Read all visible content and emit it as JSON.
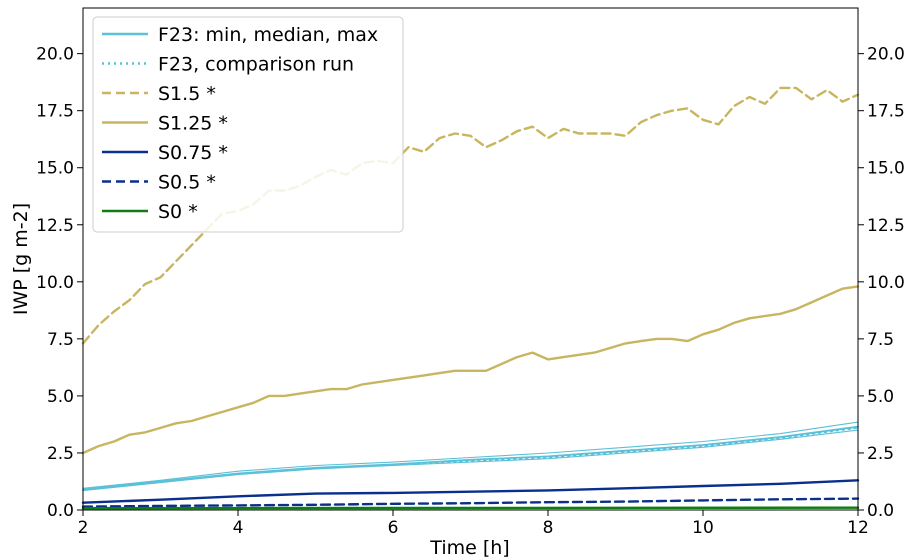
{
  "chart_data": {
    "type": "line",
    "xlabel": "Time [h]",
    "ylabel": "IWP [g m-2]",
    "xlim": [
      2,
      12
    ],
    "ylim": [
      0,
      22
    ],
    "x_ticks": [
      2,
      4,
      6,
      8,
      10,
      12
    ],
    "x_tick_labels": [
      "2",
      "4",
      "6",
      "8",
      "10",
      "12"
    ],
    "y_ticks": [
      0,
      2.5,
      5,
      7.5,
      10,
      12.5,
      15,
      17.5,
      20
    ],
    "y_tick_labels": [
      "0.0",
      "2.5",
      "5.0",
      "7.5",
      "10.0",
      "12.5",
      "15.0",
      "17.5",
      "20.0"
    ],
    "right_y_tick_labels": [
      "0.0",
      "2.5",
      "5.0",
      "7.5",
      "10.0",
      "12.5",
      "15.0",
      "17.5",
      "20.0"
    ],
    "grid": false,
    "legend_position": "top-left",
    "legend": [
      {
        "label": "F23: min, median, max",
        "color": "#5bc0d8",
        "dash": "solid"
      },
      {
        "label": "F23, comparison run",
        "color": "#5bc0d8",
        "dash": "dotted"
      },
      {
        "label": "S1.5 *",
        "color": "#c8b560",
        "dash": "dashed"
      },
      {
        "label": "S1.25 *",
        "color": "#c8b560",
        "dash": "solid"
      },
      {
        "label": "S0.75 *",
        "color": "#0a2f8c",
        "dash": "solid"
      },
      {
        "label": "S0.5 *",
        "color": "#0a2f8c",
        "dash": "dashed"
      },
      {
        "label": "S0 *",
        "color": "#0e7d12",
        "dash": "solid"
      }
    ],
    "series": [
      {
        "name": "S1.5 *",
        "color": "#c8b560",
        "dash": "dashed",
        "width": 2.4,
        "x": [
          2,
          2.2,
          2.4,
          2.6,
          2.8,
          3,
          3.2,
          3.4,
          3.6,
          3.8,
          4,
          4.2,
          4.4,
          4.6,
          4.8,
          5,
          5.2,
          5.4,
          5.6,
          5.8,
          6,
          6.2,
          6.4,
          6.6,
          6.8,
          7,
          7.2,
          7.4,
          7.6,
          7.8,
          8,
          8.2,
          8.4,
          8.6,
          8.8,
          9,
          9.2,
          9.4,
          9.6,
          9.8,
          10,
          10.2,
          10.4,
          10.6,
          10.8,
          11,
          11.2,
          11.4,
          11.6,
          11.8,
          12
        ],
        "y": [
          7.3,
          8.1,
          8.7,
          9.2,
          9.9,
          10.2,
          10.9,
          11.6,
          12.3,
          13.0,
          13.1,
          13.4,
          14.0,
          14.0,
          14.2,
          14.6,
          14.9,
          14.7,
          15.2,
          15.3,
          15.2,
          15.9,
          15.7,
          16.3,
          16.5,
          16.4,
          15.9,
          16.2,
          16.6,
          16.8,
          16.3,
          16.7,
          16.5,
          16.5,
          16.5,
          16.4,
          17.0,
          17.3,
          17.5,
          17.6,
          17.1,
          16.9,
          17.7,
          18.1,
          17.8,
          18.5,
          18.5,
          18.0,
          18.4,
          17.9,
          18.2
        ]
      },
      {
        "name": "S1.25 *",
        "color": "#c8b560",
        "dash": "solid",
        "width": 2.4,
        "x": [
          2,
          2.2,
          2.4,
          2.6,
          2.8,
          3,
          3.2,
          3.4,
          3.6,
          3.8,
          4,
          4.2,
          4.4,
          4.6,
          4.8,
          5,
          5.2,
          5.4,
          5.6,
          5.8,
          6,
          6.2,
          6.4,
          6.6,
          6.8,
          7,
          7.2,
          7.4,
          7.6,
          7.8,
          8,
          8.2,
          8.4,
          8.6,
          8.8,
          9,
          9.2,
          9.4,
          9.6,
          9.8,
          10,
          10.2,
          10.4,
          10.6,
          10.8,
          11,
          11.2,
          11.4,
          11.6,
          11.8,
          12
        ],
        "y": [
          2.5,
          2.8,
          3.0,
          3.3,
          3.4,
          3.6,
          3.8,
          3.9,
          4.1,
          4.3,
          4.5,
          4.7,
          5.0,
          5.0,
          5.1,
          5.2,
          5.3,
          5.3,
          5.5,
          5.6,
          5.7,
          5.8,
          5.9,
          6.0,
          6.1,
          6.1,
          6.1,
          6.4,
          6.7,
          6.9,
          6.6,
          6.7,
          6.8,
          6.9,
          7.1,
          7.3,
          7.4,
          7.5,
          7.5,
          7.4,
          7.7,
          7.9,
          8.2,
          8.4,
          8.5,
          8.6,
          8.8,
          9.1,
          9.4,
          9.7,
          9.8
        ]
      },
      {
        "name": "F23 max",
        "color": "#5bc0d8",
        "dash": "solid",
        "width": 1.1,
        "x": [
          2,
          3,
          4,
          5,
          6,
          7,
          8,
          9,
          10,
          11,
          12
        ],
        "y": [
          0.95,
          1.3,
          1.7,
          1.95,
          2.1,
          2.3,
          2.5,
          2.75,
          3.0,
          3.35,
          3.85
        ]
      },
      {
        "name": "F23 median",
        "color": "#5bc0d8",
        "dash": "solid",
        "width": 1.8,
        "x": [
          2,
          3,
          4,
          5,
          6,
          7,
          8,
          9,
          10,
          11,
          12
        ],
        "y": [
          0.9,
          1.25,
          1.6,
          1.85,
          2.0,
          2.2,
          2.35,
          2.6,
          2.85,
          3.2,
          3.65
        ]
      },
      {
        "name": "F23 min",
        "color": "#5bc0d8",
        "dash": "solid",
        "width": 1.1,
        "x": [
          2,
          3,
          4,
          5,
          6,
          7,
          8,
          9,
          10,
          11,
          12
        ],
        "y": [
          0.85,
          1.2,
          1.55,
          1.8,
          1.95,
          2.1,
          2.25,
          2.5,
          2.75,
          3.1,
          3.5
        ]
      },
      {
        "name": "F23, comparison run",
        "color": "#5bc0d8",
        "dash": "dotted",
        "width": 1.6,
        "x": [
          2,
          3,
          4,
          5,
          6,
          7,
          8,
          9,
          10,
          11,
          12
        ],
        "y": [
          0.88,
          1.22,
          1.58,
          1.82,
          1.98,
          2.15,
          2.3,
          2.55,
          2.8,
          3.15,
          3.6
        ]
      },
      {
        "name": "S0.75 *",
        "color": "#0a2f8c",
        "dash": "solid",
        "width": 2.4,
        "x": [
          2,
          3,
          4,
          5,
          6,
          7,
          8,
          9,
          10,
          11,
          12
        ],
        "y": [
          0.32,
          0.45,
          0.6,
          0.72,
          0.75,
          0.8,
          0.86,
          0.95,
          1.05,
          1.15,
          1.3
        ]
      },
      {
        "name": "S0.5 *",
        "color": "#0a2f8c",
        "dash": "dashed",
        "width": 2.4,
        "x": [
          2,
          3,
          4,
          5,
          6,
          7,
          8,
          9,
          10,
          11,
          12
        ],
        "y": [
          0.15,
          0.18,
          0.2,
          0.23,
          0.27,
          0.3,
          0.34,
          0.37,
          0.42,
          0.47,
          0.5
        ]
      },
      {
        "name": "S0 *",
        "color": "#0e7d12",
        "dash": "solid",
        "width": 2.4,
        "x": [
          2,
          12
        ],
        "y": [
          0.08,
          0.1
        ]
      }
    ]
  }
}
